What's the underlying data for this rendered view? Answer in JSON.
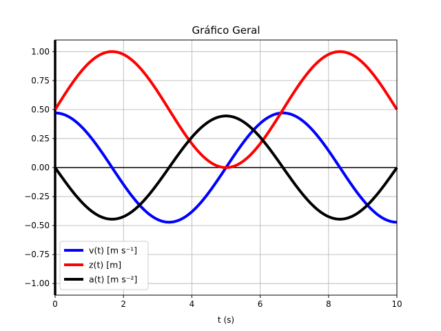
{
  "chart_data": {
    "type": "line",
    "title": "Gráfico Geral",
    "xlabel": "t (s)",
    "ylabel": "",
    "xlim": [
      0,
      10
    ],
    "ylim": [
      -1.1,
      1.1
    ],
    "x_ticks": [
      0,
      2,
      4,
      6,
      8,
      10
    ],
    "x_tick_labels": [
      "0",
      "2",
      "4",
      "6",
      "8",
      "10"
    ],
    "y_ticks": [
      -1.0,
      -0.75,
      -0.5,
      -0.25,
      0.0,
      0.25,
      0.5,
      0.75,
      1.0
    ],
    "y_tick_labels": [
      "−1.00",
      "−0.75",
      "−0.50",
      "−0.25",
      "0.00",
      "0.25",
      "0.50",
      "0.75",
      "1.00"
    ],
    "grid": true,
    "legend_position": "lower-left",
    "reference_lines": [
      {
        "orientation": "horizontal",
        "value": 0,
        "color": "#000000"
      },
      {
        "orientation": "vertical",
        "value": 0,
        "color": "#000000"
      }
    ],
    "x": [
      0,
      0.25,
      0.5,
      0.75,
      1.0,
      1.25,
      1.5,
      1.75,
      2.0,
      2.25,
      2.5,
      2.75,
      3.0,
      3.25,
      3.5,
      3.75,
      4.0,
      4.25,
      4.5,
      4.75,
      5.0,
      5.25,
      5.5,
      5.75,
      6.0,
      6.25,
      6.5,
      6.75,
      7.0,
      7.25,
      7.5,
      7.75,
      8.0,
      8.25,
      8.5,
      8.75,
      9.0,
      9.25,
      9.5,
      9.75,
      10.0
    ],
    "series": [
      {
        "name": "v(t) [m s⁻¹]",
        "color": "#0000ff",
        "values": [
          0.471,
          0.459,
          0.424,
          0.368,
          0.294,
          0.207,
          0.111,
          0.011,
          -0.089,
          -0.187,
          -0.277,
          -0.354,
          -0.415,
          -0.455,
          -0.473,
          -0.468,
          -0.441,
          -0.393,
          -0.326,
          -0.245,
          -0.154,
          -0.056,
          0.044,
          0.143,
          0.237,
          0.321,
          0.39,
          0.443,
          0.473,
          0.471,
          0.458,
          0.42,
          0.362,
          0.287,
          0.199,
          0.102,
          0.002,
          -0.099,
          -0.196,
          -0.285,
          -0.471
        ]
      },
      {
        "name": "z(t) [m]",
        "color": "#ff0000",
        "values": [
          0.5,
          0.618,
          0.727,
          0.827,
          0.904,
          0.961,
          0.993,
          1.0,
          0.981,
          0.937,
          0.87,
          0.783,
          0.681,
          0.568,
          0.451,
          0.334,
          0.224,
          0.126,
          0.054,
          0.012,
          0.0,
          0.018,
          0.066,
          0.142,
          0.242,
          0.357,
          0.476,
          0.593,
          0.703,
          0.8,
          0.885,
          0.948,
          0.987,
          1.0,
          0.986,
          0.946,
          0.882,
          0.797,
          0.696,
          0.584,
          0.5
        ]
      },
      {
        "name": "a(t) [m s⁻²]",
        "color": "#000000",
        "values": [
          0.0,
          -0.092,
          -0.178,
          -0.256,
          -0.32,
          -0.371,
          -0.405,
          -0.425,
          -0.446,
          -0.42,
          -0.387,
          -0.34,
          -0.281,
          -0.21,
          -0.13,
          -0.044,
          0.041,
          0.125,
          0.205,
          0.276,
          0.337,
          0.39,
          0.425,
          0.445,
          0.445,
          0.425,
          0.39,
          0.337,
          0.276,
          0.205,
          0.125,
          0.041,
          -0.044,
          -0.13,
          -0.21,
          -0.281,
          -0.34,
          -0.387,
          -0.42,
          -0.44,
          0.0
        ]
      }
    ]
  }
}
